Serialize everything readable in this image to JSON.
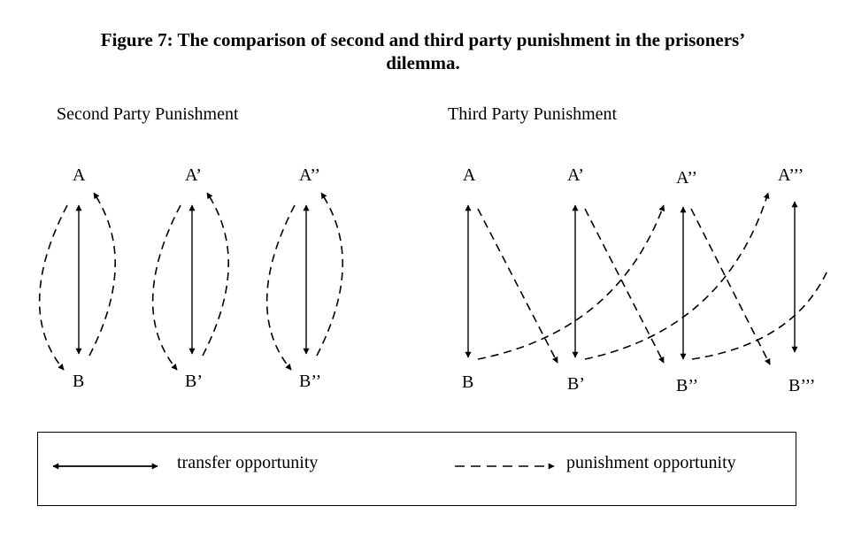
{
  "figure": {
    "title_line1": "Figure 7: The comparison of second and third party punishment in the prisoners’",
    "title_line2": "dilemma."
  },
  "panels": {
    "second": {
      "title": "Second Party Punishment",
      "top_nodes": [
        "A",
        "A’",
        "A’’"
      ],
      "bottom_nodes": [
        "B",
        "B’",
        "B’’"
      ]
    },
    "third": {
      "title": "Third Party Punishment",
      "top_nodes": [
        "A",
        "A’",
        "A’’",
        "A’’’"
      ],
      "bottom_nodes": [
        "B",
        "B’",
        "B’’",
        "B’’’"
      ]
    }
  },
  "legend": {
    "transfer_label": "transfer opportunity",
    "punishment_label": "punishment opportunity"
  }
}
